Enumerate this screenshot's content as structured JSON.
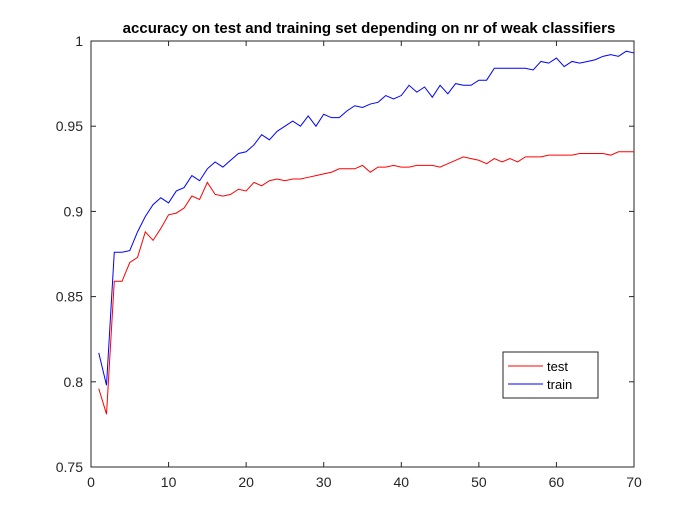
{
  "chart_data": {
    "type": "line",
    "title": "accuracy on test and training set depending on nr of weak classifiers",
    "xlabel": "",
    "ylabel": "",
    "xlim": [
      0,
      70
    ],
    "ylim": [
      0.75,
      1.0
    ],
    "xticks": [
      0,
      10,
      20,
      30,
      40,
      50,
      60,
      70
    ],
    "yticks": [
      0.75,
      0.8,
      0.85,
      0.9,
      0.95,
      1
    ],
    "xtick_labels": [
      "0",
      "10",
      "20",
      "30",
      "40",
      "50",
      "60",
      "70"
    ],
    "ytick_labels": [
      "0.75",
      "0.8",
      "0.85",
      "0.9",
      "0.95",
      "1"
    ],
    "grid": false,
    "legend_position": "lower-right",
    "x": [
      1,
      2,
      3,
      4,
      5,
      6,
      7,
      8,
      9,
      10,
      11,
      12,
      13,
      14,
      15,
      16,
      17,
      18,
      19,
      20,
      21,
      22,
      23,
      24,
      25,
      26,
      27,
      28,
      29,
      30,
      31,
      32,
      33,
      34,
      35,
      36,
      37,
      38,
      39,
      40,
      41,
      42,
      43,
      44,
      45,
      46,
      47,
      48,
      49,
      50,
      51,
      52,
      53,
      54,
      55,
      56,
      57,
      58,
      59,
      60,
      61,
      62,
      63,
      64,
      65,
      66,
      67,
      68,
      69,
      70
    ],
    "series": [
      {
        "name": "test",
        "color": "#ff0000",
        "values": [
          0.796,
          0.781,
          0.859,
          0.859,
          0.87,
          0.873,
          0.888,
          0.883,
          0.89,
          0.898,
          0.899,
          0.902,
          0.909,
          0.907,
          0.917,
          0.91,
          0.909,
          0.91,
          0.913,
          0.912,
          0.917,
          0.915,
          0.918,
          0.919,
          0.918,
          0.919,
          0.919,
          0.92,
          0.921,
          0.922,
          0.923,
          0.925,
          0.925,
          0.925,
          0.927,
          0.923,
          0.926,
          0.926,
          0.927,
          0.926,
          0.926,
          0.927,
          0.927,
          0.927,
          0.926,
          0.928,
          0.93,
          0.932,
          0.931,
          0.93,
          0.928,
          0.931,
          0.929,
          0.931,
          0.929,
          0.932,
          0.932,
          0.932,
          0.933,
          0.933,
          0.933,
          0.933,
          0.934,
          0.934,
          0.934,
          0.934,
          0.933,
          0.935,
          0.935,
          0.935
        ]
      },
      {
        "name": "train",
        "color": "#0000ff",
        "values": [
          0.817,
          0.798,
          0.876,
          0.876,
          0.877,
          0.888,
          0.897,
          0.904,
          0.908,
          0.905,
          0.912,
          0.914,
          0.921,
          0.918,
          0.925,
          0.929,
          0.926,
          0.93,
          0.934,
          0.935,
          0.939,
          0.945,
          0.942,
          0.947,
          0.95,
          0.953,
          0.95,
          0.956,
          0.95,
          0.957,
          0.955,
          0.955,
          0.959,
          0.962,
          0.961,
          0.963,
          0.964,
          0.968,
          0.966,
          0.968,
          0.974,
          0.97,
          0.973,
          0.967,
          0.974,
          0.969,
          0.975,
          0.974,
          0.974,
          0.977,
          0.977,
          0.984,
          0.984,
          0.984,
          0.984,
          0.984,
          0.983,
          0.988,
          0.987,
          0.99,
          0.985,
          0.988,
          0.987,
          0.988,
          0.989,
          0.991,
          0.992,
          0.991,
          0.994,
          0.993
        ]
      }
    ]
  }
}
